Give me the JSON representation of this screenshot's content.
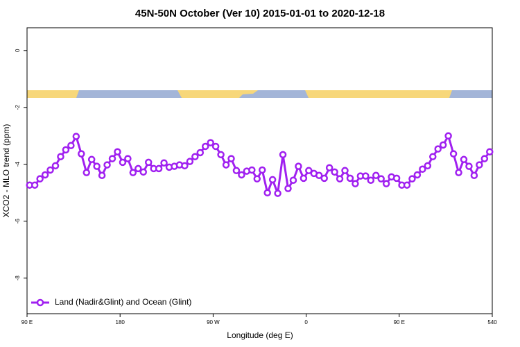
{
  "chart_data": {
    "type": "line",
    "title": "45N-50N October (Ver 10)   2015-01-01 to 2020-12-18",
    "x_label": "Longitude (deg E)",
    "y_label": "XCO2 - MLO trend (ppm)",
    "x": [
      92.5,
      97.5,
      102.5,
      107.5,
      112.5,
      117.5,
      122.5,
      127.5,
      132.5,
      137.5,
      142.5,
      147.5,
      152.5,
      157.5,
      162.5,
      167.5,
      172.5,
      177.5,
      182.5,
      187.5,
      192.5,
      197.5,
      202.5,
      207.5,
      212.5,
      217.5,
      222.5,
      227.5,
      232.5,
      237.5,
      242.5,
      247.5,
      252.5,
      257.5,
      262.5,
      267.5,
      272.5,
      277.5,
      282.5,
      287.5,
      292.5,
      297.5,
      302.5,
      307.5,
      312.5,
      317.5,
      322.5,
      327.5,
      332.5,
      337.5,
      342.5,
      347.5,
      352.5,
      357.5,
      362.5,
      367.5,
      372.5,
      377.5,
      382.5,
      387.5,
      392.5,
      397.5,
      402.5,
      407.5,
      412.5,
      417.5,
      422.5,
      427.5,
      432.5,
      437.5,
      442.5,
      447.5,
      452.5,
      457.5,
      462.5,
      467.5,
      472.5,
      477.5,
      482.5,
      487.5,
      492.5,
      497.5,
      502.5,
      507.5,
      512.5,
      517.5,
      522.5,
      527.5,
      532.5,
      537.5
    ],
    "series": [
      {
        "name": "Land (Nadir&Glint) and Ocean (Glint)",
        "color": "#a020f0",
        "values": [
          -4.73,
          -4.73,
          -4.51,
          -4.37,
          -4.2,
          -4.05,
          -3.73,
          -3.49,
          -3.34,
          -3.02,
          -3.63,
          -4.29,
          -3.83,
          -4.07,
          -4.39,
          -4.02,
          -3.8,
          -3.56,
          -3.93,
          -3.8,
          -4.29,
          -4.15,
          -4.27,
          -3.93,
          -4.15,
          -4.15,
          -3.95,
          -4.1,
          -4.07,
          -4.02,
          -4.05,
          -3.9,
          -3.73,
          -3.59,
          -3.37,
          -3.24,
          -3.37,
          -3.66,
          -4.02,
          -3.8,
          -4.22,
          -4.37,
          -4.24,
          -4.2,
          -4.51,
          -4.2,
          -5.0,
          -4.54,
          -5.02,
          -3.66,
          -4.85,
          -4.56,
          -4.07,
          -4.49,
          -4.22,
          -4.32,
          -4.39,
          -4.49,
          -4.12,
          -4.27,
          -4.51,
          -4.22,
          -4.49,
          -4.68,
          -4.41,
          -4.41,
          -4.56,
          -4.39,
          -4.51,
          -4.68,
          -4.44,
          -4.49,
          -4.73,
          -4.73,
          -4.51,
          -4.37,
          -4.17,
          -4.05,
          -3.73,
          -3.46,
          -3.32,
          -3.0,
          -3.63,
          -4.29,
          -3.83,
          -4.07,
          -4.39,
          -4.02,
          -3.8,
          -3.56
        ]
      }
    ],
    "xlim": [
      90,
      540
    ],
    "xticks": [
      {
        "value": 90,
        "label": "90 E"
      },
      180,
      {
        "value": 270,
        "label": "90 W"
      },
      {
        "value": 360,
        "label": "0"
      },
      {
        "value": 450,
        "label": "90 E"
      },
      540
    ],
    "ylim": [
      -9.25,
      0.8
    ],
    "yticks": [
      0,
      -2,
      -4,
      -6,
      -8
    ],
    "legend": "bottom-left"
  }
}
